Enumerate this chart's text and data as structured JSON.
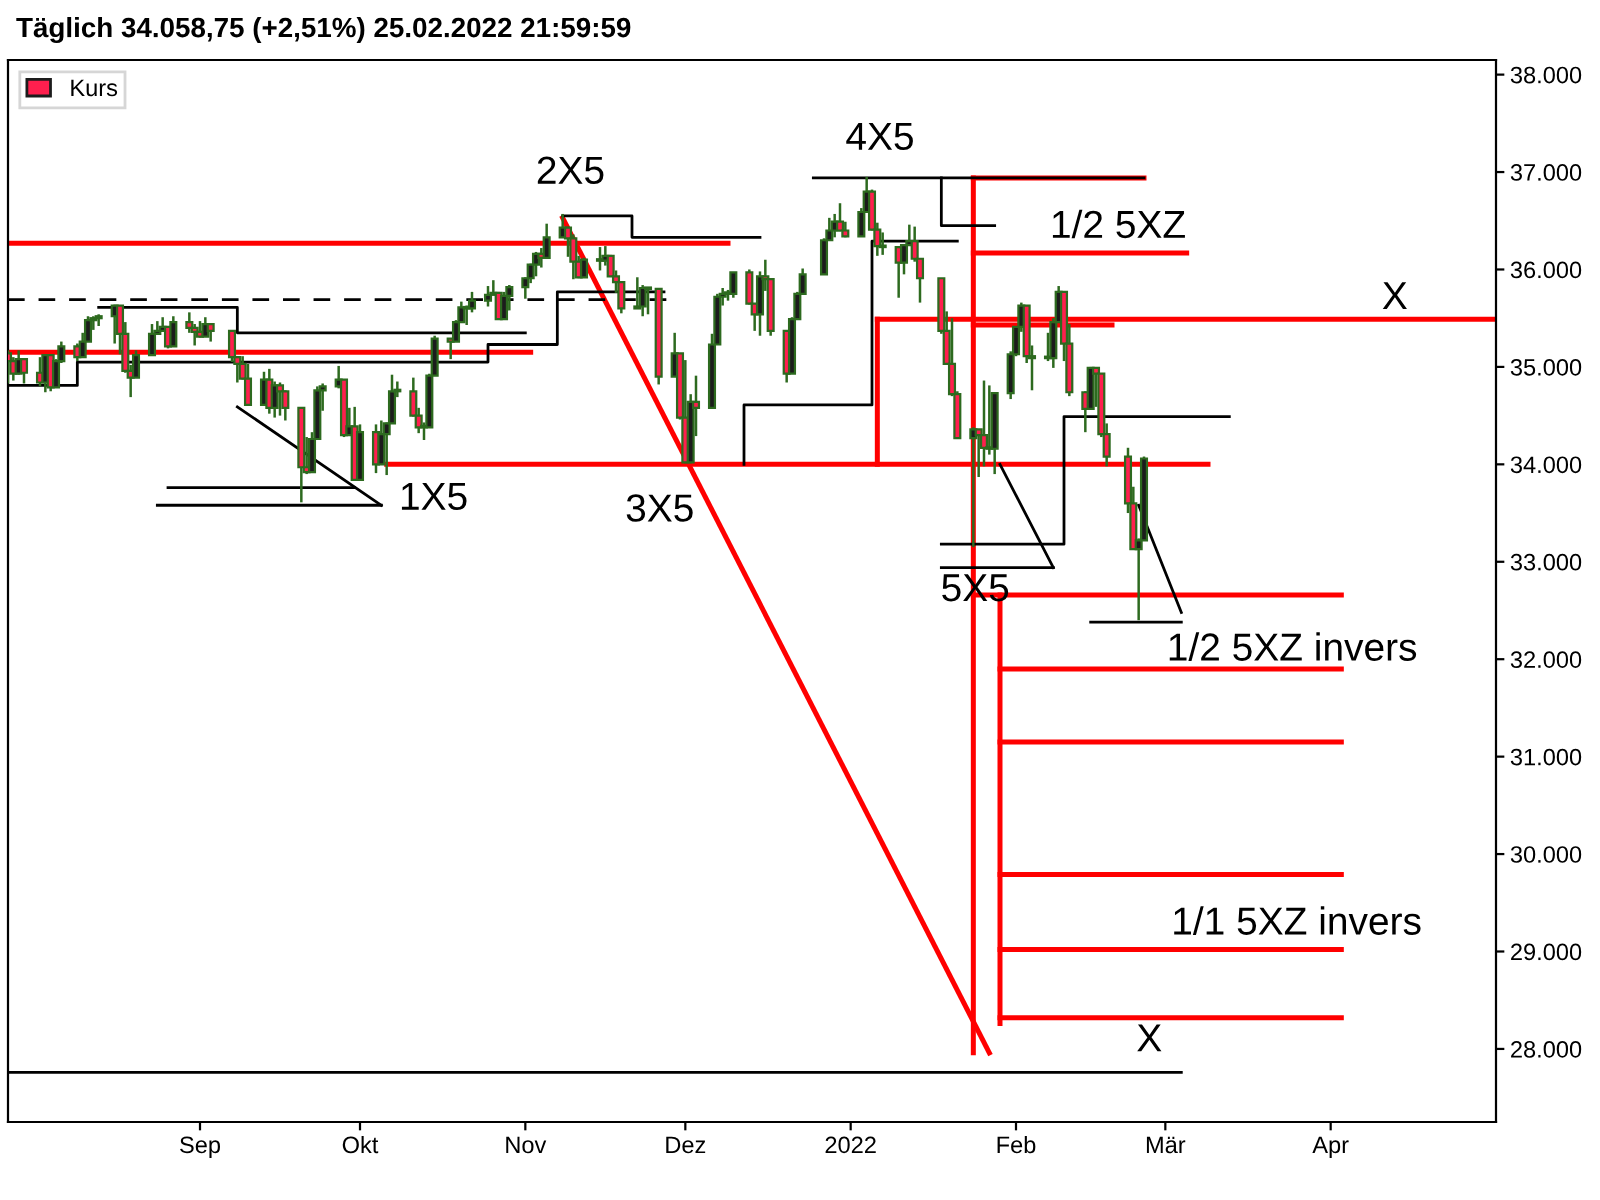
{
  "chart_data": {
    "type": "candlestick",
    "title": "Täglich 34.058,75 (+2,51%) 25.02.2022 21:59:59",
    "xlim": [
      "2021-07-27",
      "2022-05-02"
    ],
    "ylim": [
      27250,
      38150
    ],
    "xticks": [
      {
        "value": "2021-09-01",
        "label": "Sep"
      },
      {
        "value": "2021-10-01",
        "label": "Okt"
      },
      {
        "value": "2021-11-01",
        "label": "Nov"
      },
      {
        "value": "2021-12-01",
        "label": "Dez"
      },
      {
        "value": "2022-01-01",
        "label": "2022"
      },
      {
        "value": "2022-02-01",
        "label": "Feb"
      },
      {
        "value": "2022-03-01",
        "label": "Mär"
      },
      {
        "value": "2022-04-01",
        "label": "Apr"
      }
    ],
    "yticks": [
      {
        "value": 28000,
        "label": "28.000"
      },
      {
        "value": 29000,
        "label": "29.000"
      },
      {
        "value": 30000,
        "label": "30.000"
      },
      {
        "value": 31000,
        "label": "31.000"
      },
      {
        "value": 32000,
        "label": "32.000"
      },
      {
        "value": 33000,
        "label": "33.000"
      },
      {
        "value": 34000,
        "label": "34.000"
      },
      {
        "value": 35000,
        "label": "35.000"
      },
      {
        "value": 36000,
        "label": "36.000"
      },
      {
        "value": 37000,
        "label": "37.000"
      },
      {
        "value": 38000,
        "label": "38.000"
      }
    ],
    "legend": "top left",
    "series": [
      {
        "name": "Kurs",
        "x": [
          "2021-07-27",
          "2021-07-28",
          "2021-07-29",
          "2021-07-30",
          "2021-08-02",
          "2021-08-03",
          "2021-08-04",
          "2021-08-05",
          "2021-08-06",
          "2021-08-09",
          "2021-08-10",
          "2021-08-11",
          "2021-08-12",
          "2021-08-13",
          "2021-08-16",
          "2021-08-17",
          "2021-08-18",
          "2021-08-19",
          "2021-08-20",
          "2021-08-23",
          "2021-08-24",
          "2021-08-25",
          "2021-08-26",
          "2021-08-27",
          "2021-08-30",
          "2021-08-31",
          "2021-09-01",
          "2021-09-02",
          "2021-09-03",
          "2021-09-07",
          "2021-09-08",
          "2021-09-09",
          "2021-09-10",
          "2021-09-13",
          "2021-09-14",
          "2021-09-15",
          "2021-09-16",
          "2021-09-17",
          "2021-09-20",
          "2021-09-21",
          "2021-09-22",
          "2021-09-23",
          "2021-09-24",
          "2021-09-27",
          "2021-09-28",
          "2021-09-29",
          "2021-09-30",
          "2021-10-01",
          "2021-10-04",
          "2021-10-05",
          "2021-10-06",
          "2021-10-07",
          "2021-10-08",
          "2021-10-11",
          "2021-10-12",
          "2021-10-13",
          "2021-10-14",
          "2021-10-15",
          "2021-10-18",
          "2021-10-19",
          "2021-10-20",
          "2021-10-21",
          "2021-10-22",
          "2021-10-25",
          "2021-10-26",
          "2021-10-27",
          "2021-10-28",
          "2021-10-29",
          "2021-11-01",
          "2021-11-02",
          "2021-11-03",
          "2021-11-04",
          "2021-11-05",
          "2021-11-08",
          "2021-11-09",
          "2021-11-10",
          "2021-11-11",
          "2021-11-12",
          "2021-11-15",
          "2021-11-16",
          "2021-11-17",
          "2021-11-18",
          "2021-11-19",
          "2021-11-22",
          "2021-11-23",
          "2021-11-24",
          "2021-11-26",
          "2021-11-29",
          "2021-11-30",
          "2021-12-01",
          "2021-12-02",
          "2021-12-03",
          "2021-12-06",
          "2021-12-07",
          "2021-12-08",
          "2021-12-09",
          "2021-12-10",
          "2021-12-13",
          "2021-12-14",
          "2021-12-15",
          "2021-12-16",
          "2021-12-17",
          "2021-12-20",
          "2021-12-21",
          "2021-12-22",
          "2021-12-23",
          "2021-12-27",
          "2021-12-28",
          "2021-12-29",
          "2021-12-30",
          "2021-12-31",
          "2022-01-03",
          "2022-01-04",
          "2022-01-05",
          "2022-01-06",
          "2022-01-07",
          "2022-01-10",
          "2022-01-11",
          "2022-01-12",
          "2022-01-13",
          "2022-01-14",
          "2022-01-18",
          "2022-01-19",
          "2022-01-20",
          "2022-01-21",
          "2022-01-24",
          "2022-01-25",
          "2022-01-26",
          "2022-01-27",
          "2022-01-28",
          "2022-01-31",
          "2022-02-01",
          "2022-02-02",
          "2022-02-03",
          "2022-02-04",
          "2022-02-07",
          "2022-02-08",
          "2022-02-09",
          "2022-02-10",
          "2022-02-11",
          "2022-02-14",
          "2022-02-15",
          "2022-02-16",
          "2022-02-17",
          "2022-02-18",
          "2022-02-22",
          "2022-02-23",
          "2022-02-24",
          "2022-02-25"
        ],
        "ohlc": [
          [
            35140,
            35170,
            34830,
            35060
          ],
          [
            35060,
            35100,
            34860,
            34930
          ],
          [
            34930,
            35170,
            34920,
            35080
          ],
          [
            35080,
            35090,
            34830,
            34940
          ],
          [
            34940,
            35100,
            34800,
            34840
          ],
          [
            34840,
            35130,
            34740,
            35120
          ],
          [
            35120,
            35120,
            34750,
            34790
          ],
          [
            34790,
            35080,
            34790,
            35060
          ],
          [
            35060,
            35260,
            35040,
            35210
          ],
          [
            35210,
            35240,
            35060,
            35100
          ],
          [
            35100,
            35350,
            35100,
            35260
          ],
          [
            35260,
            35520,
            35260,
            35480
          ],
          [
            35480,
            35520,
            35380,
            35500
          ],
          [
            35500,
            35540,
            35420,
            35520
          ],
          [
            35520,
            35640,
            35240,
            35630
          ],
          [
            35630,
            35630,
            35130,
            35340
          ],
          [
            35340,
            35460,
            34940,
            34960
          ],
          [
            34960,
            35020,
            34690,
            34890
          ],
          [
            34890,
            35170,
            34890,
            35120
          ],
          [
            35120,
            35440,
            35120,
            35340
          ],
          [
            35340,
            35470,
            35340,
            35370
          ],
          [
            35370,
            35510,
            35370,
            35410
          ],
          [
            35410,
            35410,
            35190,
            35210
          ],
          [
            35210,
            35520,
            35210,
            35460
          ],
          [
            35460,
            35560,
            35350,
            35400
          ],
          [
            35400,
            35440,
            35220,
            35360
          ],
          [
            35360,
            35470,
            35300,
            35310
          ],
          [
            35310,
            35510,
            35310,
            35440
          ],
          [
            35440,
            35450,
            35260,
            35370
          ],
          [
            35370,
            35370,
            35050,
            35100
          ],
          [
            35100,
            35110,
            34840,
            35030
          ],
          [
            35030,
            35110,
            34870,
            34880
          ],
          [
            34880,
            35030,
            34600,
            34610
          ],
          [
            34610,
            34950,
            34610,
            34870
          ],
          [
            34870,
            34980,
            34520,
            34580
          ],
          [
            34580,
            34850,
            34480,
            34810
          ],
          [
            34810,
            34840,
            34500,
            34750
          ],
          [
            34750,
            34760,
            34450,
            34580
          ],
          [
            34580,
            34580,
            33610,
            33970
          ],
          [
            33970,
            34280,
            33900,
            33920
          ],
          [
            33920,
            34330,
            33920,
            34260
          ],
          [
            34260,
            34800,
            34260,
            34760
          ],
          [
            34760,
            34830,
            34550,
            34800
          ],
          [
            34800,
            35010,
            34780,
            34870
          ],
          [
            34870,
            34870,
            34280,
            34300
          ],
          [
            34300,
            34580,
            34300,
            34390
          ],
          [
            34390,
            34590,
            33830,
            33840
          ],
          [
            33840,
            34410,
            33840,
            34330
          ],
          [
            34330,
            34410,
            33910,
            34000
          ],
          [
            34000,
            34450,
            34000,
            34310
          ],
          [
            34310,
            34430,
            33890,
            34420
          ],
          [
            34420,
            34920,
            34420,
            34750
          ],
          [
            34750,
            34850,
            34690,
            34750
          ],
          [
            34750,
            34890,
            34490,
            34500
          ],
          [
            34500,
            34580,
            34320,
            34380
          ],
          [
            34380,
            34430,
            34250,
            34380
          ],
          [
            34380,
            34930,
            34380,
            34910
          ],
          [
            34910,
            35320,
            34910,
            35290
          ],
          [
            35290,
            35290,
            35080,
            35260
          ],
          [
            35260,
            35480,
            35260,
            35460
          ],
          [
            35460,
            35670,
            35460,
            35610
          ],
          [
            35610,
            35630,
            35430,
            35600
          ],
          [
            35600,
            35770,
            35560,
            35680
          ],
          [
            35680,
            35830,
            35620,
            35740
          ],
          [
            35740,
            35890,
            35740,
            35760
          ],
          [
            35760,
            35770,
            35490,
            35490
          ],
          [
            35490,
            35770,
            35490,
            35730
          ],
          [
            35730,
            35840,
            35580,
            35820
          ],
          [
            35820,
            35920,
            35700,
            35910
          ],
          [
            35910,
            36060,
            35860,
            36050
          ],
          [
            36050,
            36180,
            35930,
            36160
          ],
          [
            36160,
            36220,
            36020,
            36120
          ],
          [
            36120,
            36470,
            36120,
            36330
          ],
          [
            36330,
            36570,
            36330,
            36430
          ],
          [
            36430,
            36440,
            36130,
            36320
          ],
          [
            36320,
            36360,
            35900,
            36080
          ],
          [
            36080,
            36140,
            35910,
            35920
          ],
          [
            35920,
            36120,
            35920,
            36100
          ],
          [
            36100,
            36230,
            35990,
            36090
          ],
          [
            36090,
            36240,
            36040,
            36140
          ],
          [
            36140,
            36150,
            35930,
            35930
          ],
          [
            35930,
            35990,
            35760,
            35870
          ],
          [
            35870,
            35880,
            35550,
            35600
          ],
          [
            35600,
            35920,
            35600,
            35620
          ],
          [
            35620,
            35840,
            35520,
            35810
          ],
          [
            35810,
            35820,
            35540,
            35800
          ],
          [
            35800,
            35800,
            34820,
            34900
          ],
          [
            34900,
            35350,
            34900,
            35140
          ],
          [
            35140,
            35140,
            34460,
            34480
          ],
          [
            34480,
            35070,
            34010,
            34020
          ],
          [
            34020,
            34720,
            34010,
            34640
          ],
          [
            34640,
            34910,
            34290,
            34580
          ],
          [
            34580,
            35340,
            34580,
            35230
          ],
          [
            35230,
            35750,
            35230,
            35720
          ],
          [
            35720,
            35810,
            35630,
            35750
          ],
          [
            35750,
            35790,
            35680,
            35750
          ],
          [
            35750,
            35970,
            35710,
            35970
          ],
          [
            35970,
            36000,
            35640,
            35650
          ],
          [
            35650,
            35650,
            35370,
            35540
          ],
          [
            35540,
            35980,
            35320,
            35930
          ],
          [
            35930,
            36100,
            35780,
            35900
          ],
          [
            35900,
            35900,
            35320,
            35370
          ],
          [
            35370,
            35370,
            34840,
            34930
          ],
          [
            34930,
            35510,
            34930,
            35490
          ],
          [
            35490,
            35770,
            35490,
            35750
          ],
          [
            35750,
            36010,
            35750,
            35950
          ],
          [
            35950,
            36320,
            35950,
            36300
          ],
          [
            36300,
            36530,
            36300,
            36400
          ],
          [
            36400,
            36570,
            36330,
            36490
          ],
          [
            36490,
            36680,
            36390,
            36400
          ],
          [
            36400,
            36490,
            36330,
            36340
          ],
          [
            36340,
            36630,
            36340,
            36590
          ],
          [
            36590,
            36950,
            36590,
            36800
          ],
          [
            36800,
            36820,
            36400,
            36410
          ],
          [
            36410,
            36480,
            36140,
            36240
          ],
          [
            36240,
            36380,
            36150,
            36230
          ],
          [
            36230,
            36230,
            35710,
            36070
          ],
          [
            36070,
            36260,
            35950,
            36250
          ],
          [
            36250,
            36460,
            36250,
            36290
          ],
          [
            36290,
            36440,
            36080,
            36110
          ],
          [
            36110,
            36110,
            35660,
            35910
          ],
          [
            35910,
            35910,
            35340,
            35370
          ],
          [
            35370,
            35570,
            35020,
            35030
          ],
          [
            35030,
            35500,
            34700,
            34720
          ],
          [
            34720,
            34750,
            34260,
            34270
          ],
          [
            34270,
            34380,
            33150,
            34360
          ],
          [
            34360,
            34360,
            33870,
            34300
          ],
          [
            34300,
            34860,
            33980,
            34170
          ],
          [
            34170,
            34810,
            34100,
            34160
          ],
          [
            34160,
            34740,
            33900,
            34730
          ],
          [
            34730,
            35160,
            34670,
            35130
          ],
          [
            35130,
            35410,
            35110,
            35410
          ],
          [
            35410,
            35660,
            35360,
            35630
          ],
          [
            35630,
            35630,
            35040,
            35110
          ],
          [
            35110,
            35220,
            34760,
            35090
          ],
          [
            35090,
            35350,
            35060,
            35090
          ],
          [
            35090,
            35500,
            34990,
            35460
          ],
          [
            35460,
            35830,
            35460,
            35770
          ],
          [
            35770,
            35770,
            35060,
            35240
          ],
          [
            35240,
            35440,
            34700,
            34740
          ],
          [
            34740,
            34750,
            34330,
            34570
          ],
          [
            34570,
            35000,
            34570,
            34990
          ],
          [
            34990,
            34990,
            34590,
            34930
          ],
          [
            34930,
            34930,
            34280,
            34310
          ],
          [
            34310,
            34420,
            33980,
            34080
          ],
          [
            34080,
            34170,
            33500,
            33600
          ],
          [
            33600,
            33770,
            33130,
            33130
          ],
          [
            33130,
            33240,
            32400,
            33220
          ],
          [
            33220,
            34080,
            33220,
            34060
          ]
        ]
      },
      {
        "type": "line",
        "color": "#ff0000",
        "x": [
          "2021-07-27",
          "2021-12-09"
        ],
        "values": [
          36270,
          36270
        ]
      },
      {
        "type": "line",
        "color": "#ff0000",
        "x": [
          "2021-07-27",
          "2021-11-02"
        ],
        "values": [
          35150,
          35150
        ]
      },
      {
        "type": "line",
        "color": "#ff0000",
        "x": [
          "2021-10-06",
          "2022-03-09"
        ],
        "values": [
          34000,
          34000
        ]
      },
      {
        "type": "line",
        "color": "#ff0000",
        "x": [
          "2021-11-08",
          "2022-01-27"
        ],
        "values": [
          36530,
          27960
        ]
      },
      {
        "type": "line",
        "color": "#ff0000",
        "x": [
          "2022-01-06",
          "2022-01-06"
        ],
        "values": [
          35490,
          34000
        ]
      },
      {
        "type": "line",
        "color": "#ff0000",
        "x": [
          "2022-01-06",
          "2022-05-02"
        ],
        "values": [
          35490,
          35490
        ]
      },
      {
        "type": "line",
        "color": "#ff0000",
        "x": [
          "2022-01-24",
          "2022-01-24"
        ],
        "values": [
          36940,
          27960
        ]
      },
      {
        "type": "line",
        "color": "#ff0000",
        "x": [
          "2022-01-24",
          "2022-02-25"
        ],
        "values": [
          36940,
          36940
        ]
      },
      {
        "type": "line",
        "color": "#ff0000",
        "x": [
          "2022-01-24",
          "2022-03-05"
        ],
        "values": [
          36170,
          36170
        ]
      },
      {
        "type": "line",
        "color": "#ff0000",
        "x": [
          "2022-01-24",
          "2022-02-19"
        ],
        "values": [
          35430,
          35430
        ]
      },
      {
        "type": "line",
        "color": "#ff0000",
        "x": [
          "2022-01-24",
          "2022-04-03"
        ],
        "values": [
          32660,
          32660
        ]
      },
      {
        "type": "line",
        "color": "#ff0000",
        "x": [
          "2022-01-29",
          "2022-01-29"
        ],
        "values": [
          32660,
          28260
        ]
      },
      {
        "type": "line",
        "color": "#ff0000",
        "x": [
          "2022-01-29",
          "2022-04-03"
        ],
        "values": [
          31900,
          31900
        ]
      },
      {
        "type": "line",
        "color": "#ff0000",
        "x": [
          "2022-01-29",
          "2022-04-03"
        ],
        "values": [
          31150,
          31150
        ]
      },
      {
        "type": "line",
        "color": "#ff0000",
        "x": [
          "2022-01-29",
          "2022-04-03"
        ],
        "values": [
          29790,
          29790
        ]
      },
      {
        "type": "line",
        "color": "#ff0000",
        "x": [
          "2022-01-29",
          "2022-04-03"
        ],
        "values": [
          29020,
          29020
        ]
      },
      {
        "type": "line",
        "color": "#ff0000",
        "x": [
          "2022-01-29",
          "2022-04-03"
        ],
        "values": [
          28320,
          28320
        ]
      },
      {
        "type": "line",
        "color": "#000000",
        "line_style": "dashed",
        "x": [
          "2021-07-27",
          "2021-11-28"
        ],
        "values": [
          35690,
          35690
        ]
      },
      {
        "type": "line",
        "color": "#000000",
        "x": [
          "2021-07-27",
          "2022-03-04"
        ],
        "values": [
          27760,
          27760
        ]
      },
      {
        "type": "line",
        "color": "#000000",
        "x": [
          "2021-07-27",
          "2021-08-09",
          "2021-08-09",
          "2021-10-25",
          "2021-10-25",
          "2021-11-07",
          "2021-11-07",
          "2021-11-27"
        ],
        "values": [
          34810,
          34810,
          35050,
          35050,
          35230,
          35230,
          35770,
          35770
        ]
      },
      {
        "type": "line",
        "color": "#000000",
        "x": [
          "2021-08-13",
          "2021-09-08",
          "2021-09-08",
          "2021-11-01"
        ],
        "values": [
          35610,
          35610,
          35350,
          35350
        ]
      },
      {
        "type": "line",
        "color": "#000000",
        "x": [
          "2021-11-08",
          "2021-11-21",
          "2021-11-21",
          "2021-12-15"
        ],
        "values": [
          36550,
          36550,
          36330,
          36330
        ]
      },
      {
        "type": "line",
        "color": "#000000",
        "x": [
          "2021-12-25",
          "2022-02-25"
        ],
        "values": [
          36940,
          36940
        ]
      },
      {
        "type": "line",
        "color": "#000000",
        "x": [
          "2022-01-18",
          "2022-01-18",
          "2022-01-28"
        ],
        "values": [
          36940,
          36450,
          36450
        ]
      },
      {
        "type": "line",
        "color": "#000000",
        "x": [
          "2021-08-26",
          "2021-09-30"
        ],
        "values": [
          33760,
          33760
        ]
      },
      {
        "type": "line",
        "color": "#000000",
        "x": [
          "2021-08-24",
          "2021-10-05"
        ],
        "values": [
          33580,
          33580
        ]
      },
      {
        "type": "line",
        "color": "#000000",
        "x": [
          "2021-09-08",
          "2021-10-05"
        ],
        "values": [
          34590,
          33580
        ]
      },
      {
        "type": "line",
        "color": "#000000",
        "x": [
          "2021-12-12",
          "2021-12-12",
          "2022-01-05",
          "2022-01-05",
          "2022-01-21"
        ],
        "values": [
          34000,
          34610,
          34610,
          36290,
          36290
        ]
      },
      {
        "type": "line",
        "color": "#000000",
        "x": [
          "2022-01-18",
          "2022-02-10",
          "2022-02-10",
          "2022-03-13"
        ],
        "values": [
          33180,
          33180,
          34490,
          34490
        ]
      },
      {
        "type": "line",
        "color": "#000000",
        "x": [
          "2022-01-18",
          "2022-02-08"
        ],
        "values": [
          32940,
          32940
        ]
      },
      {
        "type": "line",
        "color": "#000000",
        "x": [
          "2022-01-29",
          "2022-02-08"
        ],
        "values": [
          34000,
          32940
        ]
      },
      {
        "type": "line",
        "color": "#000000",
        "x": [
          "2022-02-24",
          "2022-03-04"
        ],
        "values": [
          33580,
          32480
        ]
      },
      {
        "type": "line",
        "color": "#000000",
        "x": [
          "2022-02-15",
          "2022-03-04"
        ],
        "values": [
          32380,
          32380
        ]
      }
    ],
    "annotations": [
      "2X5",
      "4X5",
      "1X5",
      "3X5",
      "5X5",
      "1/2 5XZ",
      "X",
      "1/2 5XZ invers",
      "1/1 5XZ invers",
      "X"
    ]
  }
}
